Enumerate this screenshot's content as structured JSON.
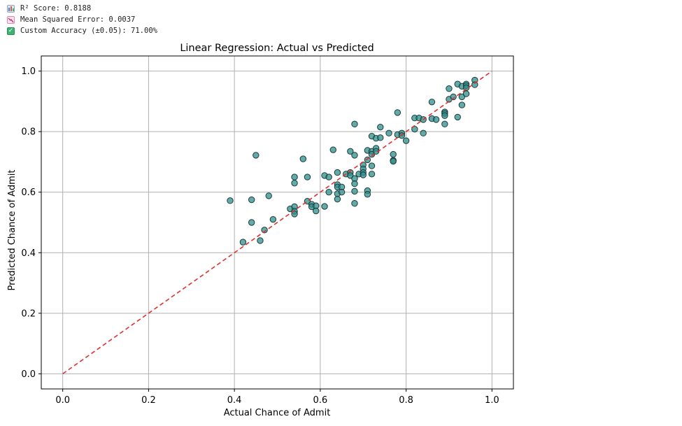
{
  "metrics": [
    {
      "icon": "bar-chart-icon",
      "text": "R² Score: 0.8188"
    },
    {
      "icon": "chart-decreasing-icon",
      "text": "Mean Squared Error: 0.0037"
    },
    {
      "icon": "check-mark-icon",
      "text": "Custom Accuracy (±0.05): 71.00%"
    }
  ],
  "chart_data": {
    "type": "scatter",
    "title": "Linear Regression: Actual vs Predicted",
    "xlabel": "Actual Chance of Admit",
    "ylabel": "Predicted Chance of Admit",
    "xlim": [
      -0.05,
      1.05
    ],
    "ylim": [
      -0.05,
      1.05
    ],
    "xticks": [
      0.0,
      0.2,
      0.4,
      0.6,
      0.8,
      1.0
    ],
    "yticks": [
      0.0,
      0.2,
      0.4,
      0.6,
      0.8,
      1.0
    ],
    "tick_labels": [
      "0.0",
      "0.2",
      "0.4",
      "0.6",
      "0.8",
      "1.0"
    ],
    "grid": true,
    "point_color": "#2f8f8c",
    "point_edge": "#1b3b3a",
    "reference_line": {
      "from": [
        0,
        0
      ],
      "to": [
        1,
        1
      ],
      "color": "#e03030",
      "style": "dashed"
    },
    "points": [
      [
        0.39,
        0.572
      ],
      [
        0.42,
        0.435
      ],
      [
        0.44,
        0.575
      ],
      [
        0.44,
        0.5
      ],
      [
        0.45,
        0.722
      ],
      [
        0.46,
        0.44
      ],
      [
        0.47,
        0.475
      ],
      [
        0.48,
        0.588
      ],
      [
        0.49,
        0.51
      ],
      [
        0.53,
        0.545
      ],
      [
        0.54,
        0.65
      ],
      [
        0.54,
        0.63
      ],
      [
        0.54,
        0.552
      ],
      [
        0.54,
        0.537
      ],
      [
        0.54,
        0.528
      ],
      [
        0.56,
        0.71
      ],
      [
        0.57,
        0.65
      ],
      [
        0.57,
        0.57
      ],
      [
        0.58,
        0.56
      ],
      [
        0.58,
        0.552
      ],
      [
        0.59,
        0.555
      ],
      [
        0.59,
        0.538
      ],
      [
        0.61,
        0.655
      ],
      [
        0.61,
        0.553
      ],
      [
        0.62,
        0.65
      ],
      [
        0.62,
        0.6
      ],
      [
        0.63,
        0.74
      ],
      [
        0.64,
        0.665
      ],
      [
        0.64,
        0.625
      ],
      [
        0.64,
        0.617
      ],
      [
        0.64,
        0.595
      ],
      [
        0.64,
        0.577
      ],
      [
        0.65,
        0.617
      ],
      [
        0.65,
        0.6
      ],
      [
        0.66,
        0.66
      ],
      [
        0.67,
        0.735
      ],
      [
        0.67,
        0.665
      ],
      [
        0.67,
        0.655
      ],
      [
        0.68,
        0.825
      ],
      [
        0.68,
        0.722
      ],
      [
        0.68,
        0.645
      ],
      [
        0.68,
        0.628
      ],
      [
        0.68,
        0.603
      ],
      [
        0.68,
        0.563
      ],
      [
        0.69,
        0.66
      ],
      [
        0.7,
        0.69
      ],
      [
        0.7,
        0.677
      ],
      [
        0.7,
        0.665
      ],
      [
        0.7,
        0.657
      ],
      [
        0.71,
        0.738
      ],
      [
        0.71,
        0.707
      ],
      [
        0.71,
        0.605
      ],
      [
        0.71,
        0.593
      ],
      [
        0.72,
        0.785
      ],
      [
        0.72,
        0.735
      ],
      [
        0.72,
        0.725
      ],
      [
        0.72,
        0.687
      ],
      [
        0.72,
        0.66
      ],
      [
        0.73,
        0.778
      ],
      [
        0.73,
        0.745
      ],
      [
        0.73,
        0.735
      ],
      [
        0.74,
        0.815
      ],
      [
        0.74,
        0.78
      ],
      [
        0.76,
        0.795
      ],
      [
        0.77,
        0.725
      ],
      [
        0.77,
        0.705
      ],
      [
        0.77,
        0.702
      ],
      [
        0.78,
        0.863
      ],
      [
        0.78,
        0.79
      ],
      [
        0.79,
        0.795
      ],
      [
        0.79,
        0.787
      ],
      [
        0.8,
        0.77
      ],
      [
        0.82,
        0.845
      ],
      [
        0.82,
        0.808
      ],
      [
        0.83,
        0.845
      ],
      [
        0.84,
        0.84
      ],
      [
        0.84,
        0.795
      ],
      [
        0.86,
        0.898
      ],
      [
        0.86,
        0.843
      ],
      [
        0.87,
        0.84
      ],
      [
        0.89,
        0.865
      ],
      [
        0.89,
        0.86
      ],
      [
        0.89,
        0.853
      ],
      [
        0.89,
        0.825
      ],
      [
        0.9,
        0.942
      ],
      [
        0.9,
        0.907
      ],
      [
        0.91,
        0.915
      ],
      [
        0.92,
        0.957
      ],
      [
        0.92,
        0.848
      ],
      [
        0.93,
        0.95
      ],
      [
        0.93,
        0.915
      ],
      [
        0.93,
        0.888
      ],
      [
        0.94,
        0.957
      ],
      [
        0.94,
        0.952
      ],
      [
        0.94,
        0.945
      ],
      [
        0.94,
        0.925
      ],
      [
        0.96,
        0.97
      ],
      [
        0.96,
        0.955
      ]
    ]
  }
}
